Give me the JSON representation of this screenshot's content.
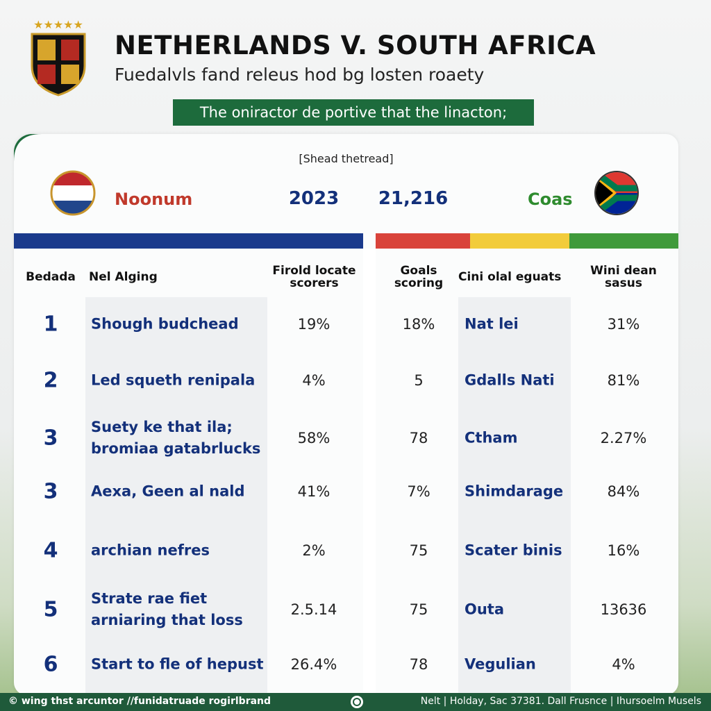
{
  "header": {
    "title": "NETHERLANDS V. SOUTH AFRICA",
    "subtitle": "Fuedalvls fand releus hod bg losten roaety",
    "banner": "The oniractor de portive that the linacton;"
  },
  "card": {
    "label": "[Shead thetread]",
    "left_team": "Noonum",
    "left_value": "2023",
    "right_value": "21,216",
    "right_team": "Coas"
  },
  "table": {
    "headers": [
      "Bedada",
      "Nel Alging",
      "Firold locate scorers",
      "Goals scoring",
      "Cini olal eguats",
      "Wini dean sasus"
    ],
    "rows": [
      [
        "1",
        "Shough budchead",
        "19%",
        "18%",
        "Nat lei",
        "31%"
      ],
      [
        "2",
        "Led squeth renipala",
        "4%",
        "5",
        "Gdalls Nati",
        "81%"
      ],
      [
        "3",
        "Suety ke that ila; bromiaa gatabrlucks",
        "58%",
        "78",
        "Ctham",
        "2.27%"
      ],
      [
        "3",
        "Aexa, Geen al nald",
        "41%",
        "7%",
        "Shimdarage",
        "84%"
      ],
      [
        "4",
        "archian nefres",
        "2%",
        "75",
        "Scater binis",
        "16%"
      ],
      [
        "5",
        "Strate rae fiet arniaring that loss",
        "2.5.14",
        "75",
        "Outa",
        "13636"
      ],
      [
        "6",
        "Start to fle of hepust",
        "26.4%",
        "78",
        "Vegulian",
        "4%"
      ]
    ]
  },
  "footer": {
    "left": "© wing thst arcuntor //funidatruade rogirlbrand",
    "right": "Nelt | Holday, Sac 37381. Dall Frusnce | Ihursoelm Musels"
  }
}
